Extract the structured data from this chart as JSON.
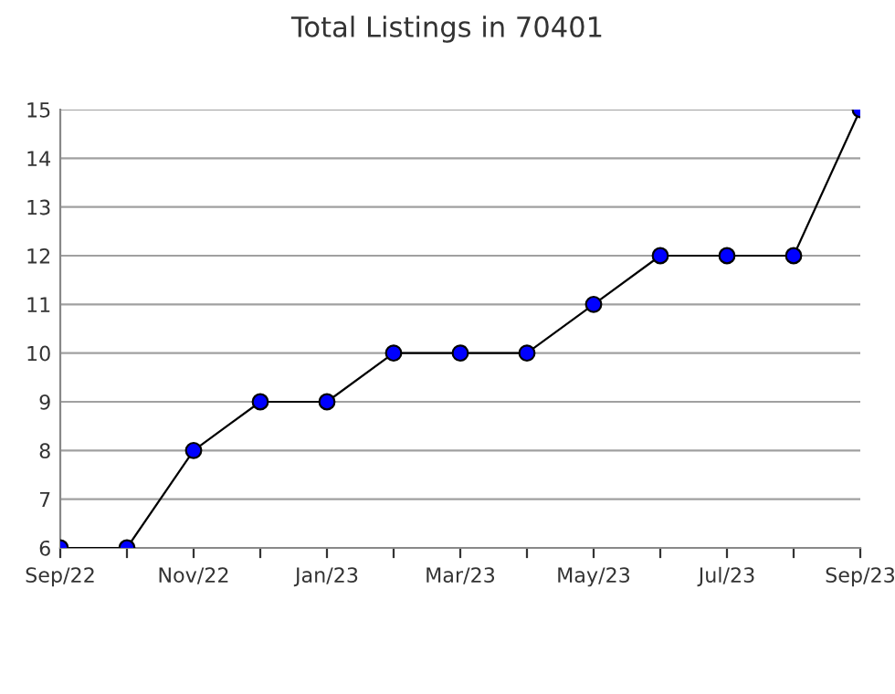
{
  "chart_data": {
    "type": "line",
    "title": "Total Listings in 70401",
    "categories": [
      "Sep/22",
      null,
      "Nov/22",
      null,
      "Jan/23",
      null,
      "Mar/23",
      null,
      "May/23",
      null,
      "Jul/23",
      null,
      "Sep/23"
    ],
    "series": [
      {
        "color": "#0000ff",
        "values": [
          6,
          6,
          8,
          9,
          9,
          10,
          10,
          10,
          11,
          12,
          12,
          12,
          15
        ]
      }
    ],
    "ylim": [
      6,
      15
    ],
    "yticks": [
      6,
      7,
      8,
      9,
      10,
      11,
      12,
      13,
      14,
      15
    ],
    "grid": "y",
    "marker": "circle",
    "line_style": "solid"
  }
}
